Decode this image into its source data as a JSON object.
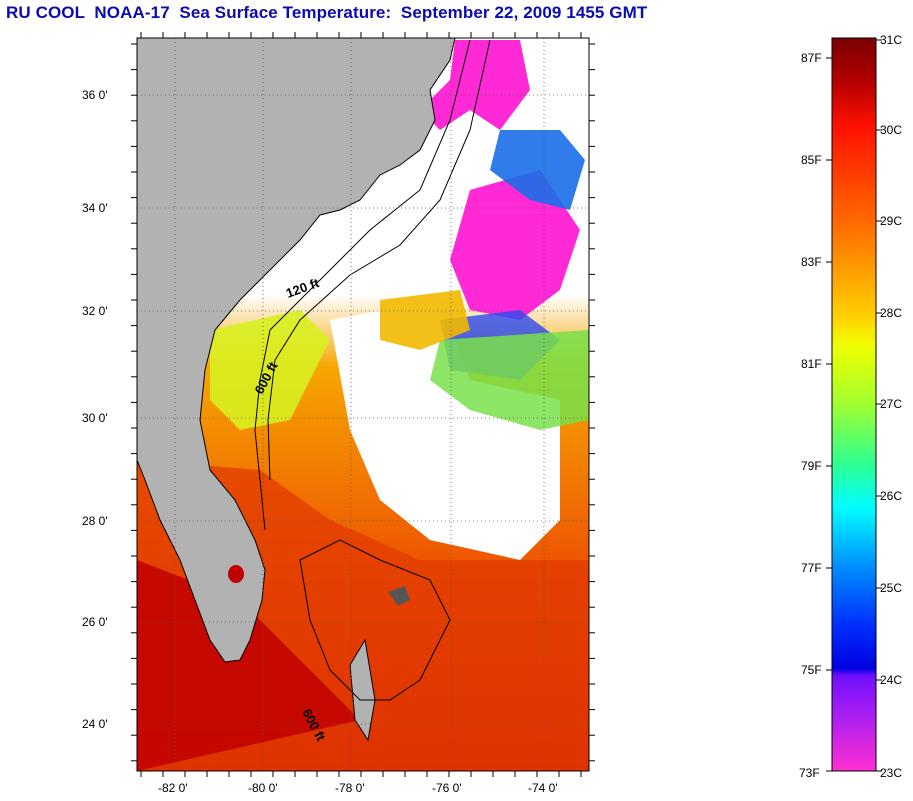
{
  "title": "RU COOL  NOAA-17  Sea Surface Temperature:  September 22, 2009 1455 GMT",
  "map": {
    "lat_ticks": [
      "36 0'",
      "34 0'",
      "32 0'",
      "30 0'",
      "28 0'",
      "26 0'",
      "24 0'"
    ],
    "lon_ticks": [
      "-82 0'",
      "-80 0'",
      "-78 0'",
      "-76 0'",
      "-74 0'"
    ],
    "contour_labels": [
      "120 ft",
      "600 ft",
      "600 ft"
    ],
    "colors": {
      "land": "#b2b2b2",
      "no_data": "#ffffff",
      "warm": "#cc1b00",
      "orange": "#f07c00",
      "yellow": "#f2e600",
      "cold": "#ff2ad6"
    }
  },
  "colorbar": {
    "celsius": [
      "31C",
      "30C",
      "29C",
      "28C",
      "27C",
      "26C",
      "25C",
      "24C",
      "23C"
    ],
    "fahrenheit": [
      "87F",
      "85F",
      "83F",
      "81F",
      "79F",
      "77F",
      "75F",
      "73F"
    ]
  }
}
